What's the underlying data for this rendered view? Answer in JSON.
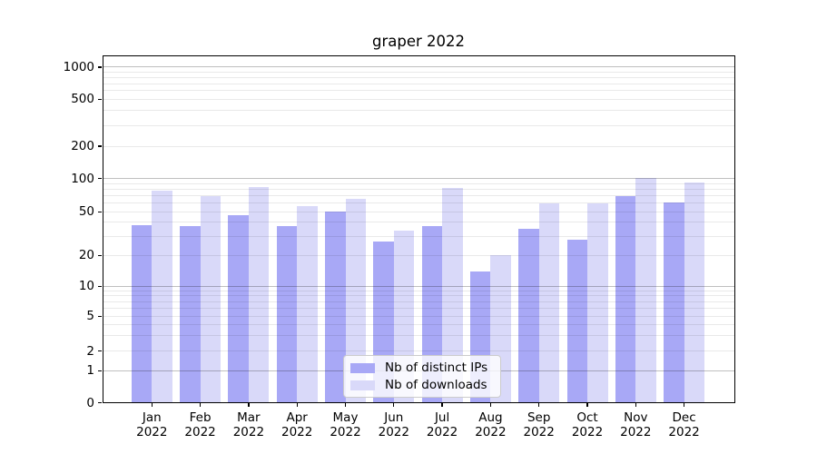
{
  "chart_data": {
    "type": "bar",
    "title": "graper 2022",
    "categories": [
      "Jan",
      "Feb",
      "Mar",
      "Apr",
      "May",
      "Jun",
      "Jul",
      "Aug",
      "Sep",
      "Oct",
      "Nov",
      "Dec"
    ],
    "xtick_second_line": "2022",
    "series": [
      {
        "name": "Nb of distinct IPs",
        "color": "#a8a8f6",
        "values": [
          38,
          37,
          47,
          37,
          50,
          27,
          37,
          14,
          35,
          28,
          70,
          61
        ]
      },
      {
        "name": "Nb of downloads",
        "color": "#d9d9f9",
        "values": [
          78,
          70,
          84,
          56,
          65,
          34,
          82,
          20,
          60,
          60,
          101,
          93
        ]
      }
    ],
    "xlabel": "",
    "ylabel": "",
    "yscale": "symlog",
    "yticks": [
      0,
      1,
      2,
      5,
      10,
      20,
      50,
      100,
      200,
      500,
      1000
    ],
    "ylim": [
      0,
      1300
    ],
    "grid": "horizontal major + log minors",
    "legend_position": "lower center inside plot"
  }
}
